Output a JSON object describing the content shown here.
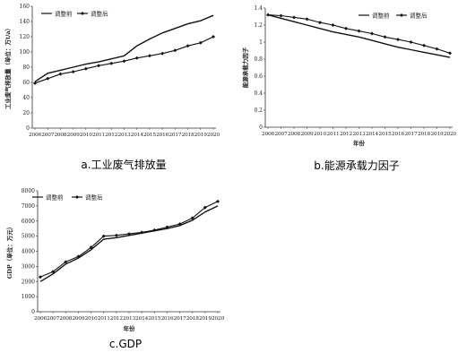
{
  "chart_data": [
    {
      "type": "line",
      "caption": "a.工业废气排放量",
      "ylabel": "工业废气排放量（单位：万t/a）",
      "xlabel": "",
      "ylim": [
        0,
        160
      ],
      "yticks": [
        "0",
        "20",
        "40",
        "60",
        "80",
        "100",
        "120",
        "140",
        "160"
      ],
      "categories": [
        "2006",
        "2007",
        "2008",
        "2009",
        "2010",
        "2011",
        "2012",
        "2013",
        "2014",
        "2015",
        "2016",
        "2017",
        "2018",
        "2019",
        "2020"
      ],
      "legend": [
        "调整前",
        "调整后"
      ],
      "grid": false,
      "series": [
        {
          "name": "调整前",
          "marker": "none",
          "values": [
            61,
            72,
            76,
            80,
            84,
            87,
            91,
            95,
            108,
            117,
            125,
            131,
            137,
            141,
            148
          ]
        },
        {
          "name": "调整后",
          "marker": "diamond",
          "values": [
            59,
            65,
            71,
            74,
            78,
            82,
            85,
            88,
            92,
            95,
            98,
            102,
            108,
            112,
            120
          ]
        }
      ]
    },
    {
      "type": "line",
      "caption": "b.能源承载力因子",
      "ylabel": "能源承载力因子",
      "xlabel": "年份",
      "ylim": [
        0,
        1.4
      ],
      "yticks": [
        "0",
        "0.2",
        "0.4",
        "0.6",
        "0.8",
        "1",
        "1.2",
        "1.4"
      ],
      "categories": [
        "2006",
        "2007",
        "2008",
        "2009",
        "2010",
        "2011",
        "2012",
        "2013",
        "2014",
        "2015",
        "2016",
        "2017",
        "2018",
        "2019",
        "2020"
      ],
      "legend": [
        "调整前",
        "调整后"
      ],
      "grid": false,
      "series": [
        {
          "name": "调整前",
          "marker": "none",
          "values": [
            1.32,
            1.28,
            1.24,
            1.2,
            1.16,
            1.12,
            1.09,
            1.06,
            1.02,
            0.98,
            0.94,
            0.91,
            0.88,
            0.85,
            0.82
          ]
        },
        {
          "name": "调整后",
          "marker": "diamond",
          "values": [
            1.32,
            1.31,
            1.29,
            1.27,
            1.23,
            1.2,
            1.16,
            1.13,
            1.1,
            1.06,
            1.03,
            1.0,
            0.96,
            0.92,
            0.87
          ]
        }
      ]
    },
    {
      "type": "line",
      "caption": "c.GDP",
      "ylabel": "GDP（单位：万元）",
      "xlabel": "年份",
      "ylim": [
        0,
        8000
      ],
      "yticks": [
        "0",
        "1000",
        "2000",
        "3000",
        "4000",
        "5000",
        "6000",
        "7000",
        "8000"
      ],
      "categories": [
        "2006",
        "2007",
        "2008",
        "2009",
        "2010",
        "2011",
        "2012",
        "2013",
        "2014",
        "2015",
        "2016",
        "2017",
        "2018",
        "2019",
        "2020"
      ],
      "legend": [
        "调整前",
        "调整后"
      ],
      "grid": false,
      "series": [
        {
          "name": "调整前",
          "marker": "none",
          "values": [
            2000,
            2500,
            3150,
            3550,
            4100,
            4800,
            4900,
            5050,
            5200,
            5350,
            5500,
            5700,
            6050,
            6600,
            7000
          ]
        },
        {
          "name": "调整后",
          "marker": "diamond",
          "values": [
            2300,
            2650,
            3300,
            3650,
            4250,
            5000,
            5050,
            5150,
            5250,
            5400,
            5600,
            5800,
            6200,
            6900,
            7300
          ]
        }
      ]
    }
  ]
}
